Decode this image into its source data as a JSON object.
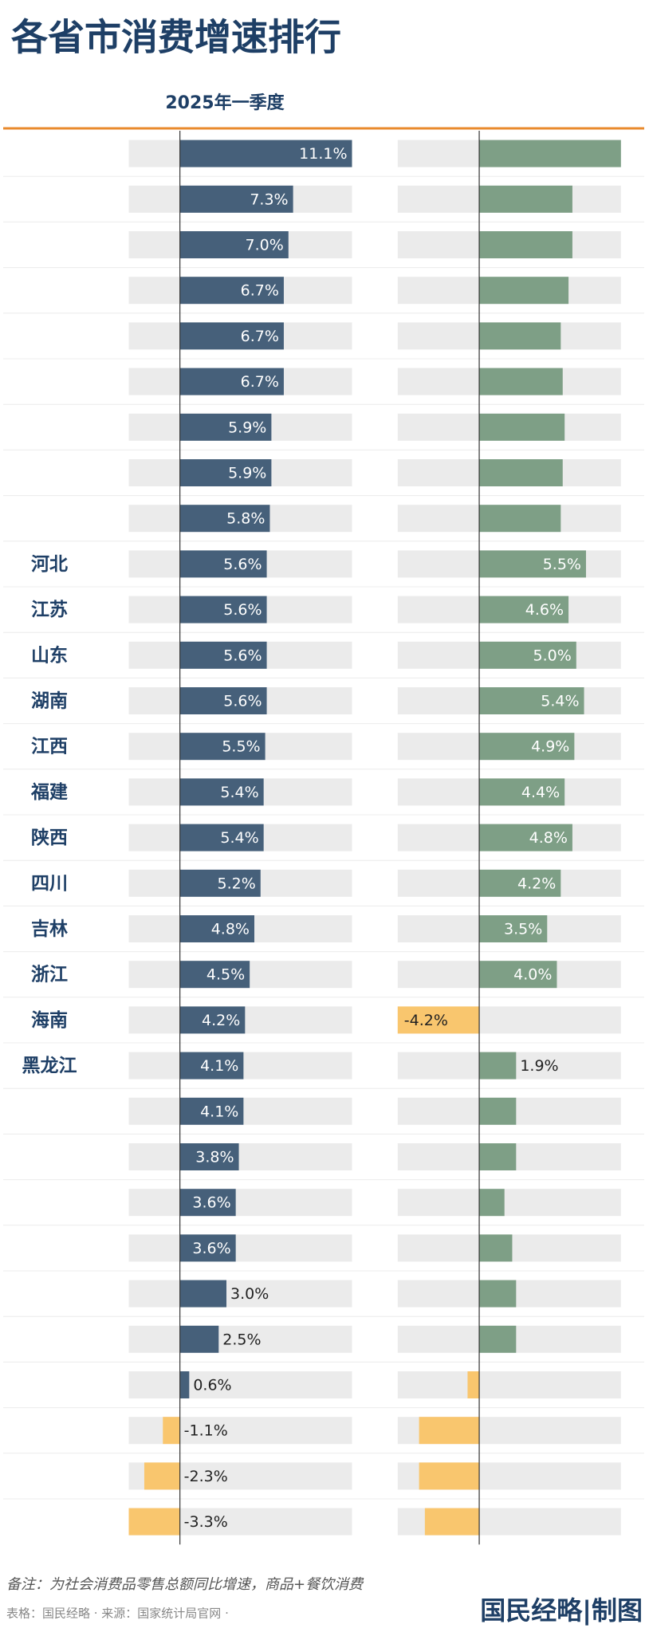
{
  "chart_data": {
    "type": "bar",
    "orientation": "horizontal",
    "title": "各省市消费增速排行",
    "note": "备注：为社会消费品零售总额同比增速，商品+餐饮消费",
    "source": "表格：国民经略 · 来源：国家统计局官网 ·",
    "brand": "国民经略|制图",
    "categories": [
      null,
      null,
      null,
      null,
      null,
      null,
      null,
      null,
      null,
      "河北",
      "江苏",
      "山东",
      "湖南",
      "江西",
      "福建",
      "陕西",
      "四川",
      "吉林",
      "浙江",
      "海南",
      "黑龙江",
      null,
      null,
      null,
      null,
      null,
      null,
      null,
      null,
      null,
      null
    ],
    "series": [
      {
        "name": "2025年一季度",
        "color": "#46607a",
        "negative_color": "#f9c66e",
        "xlim": [
          -3.3,
          11.1
        ],
        "values": [
          11.1,
          7.3,
          7.0,
          6.7,
          6.7,
          6.7,
          5.9,
          5.9,
          5.8,
          5.6,
          5.6,
          5.6,
          5.6,
          5.5,
          5.4,
          5.4,
          5.2,
          4.8,
          4.5,
          4.2,
          4.1,
          4.1,
          3.8,
          3.6,
          3.6,
          3.0,
          2.5,
          0.6,
          -1.1,
          -2.3,
          -3.3
        ],
        "value_labels": [
          "11.1%",
          "7.3%",
          "7.0%",
          "6.7%",
          "6.7%",
          "6.7%",
          "5.9%",
          "5.9%",
          "5.8%",
          "5.6%",
          "5.6%",
          "5.6%",
          "5.6%",
          "5.5%",
          "5.4%",
          "5.4%",
          "5.2%",
          "4.8%",
          "4.5%",
          "4.2%",
          "4.1%",
          "4.1%",
          "3.8%",
          "3.6%",
          "3.6%",
          "3.0%",
          "2.5%",
          "0.6%",
          "-1.1%",
          "-2.3%",
          "-3.3%"
        ]
      },
      {
        "color": "#7e9f86",
        "negative_color": "#f9c66e",
        "xlim": [
          -4.2,
          7.3
        ],
        "values": [
          7.3,
          4.8,
          4.8,
          4.6,
          4.2,
          4.3,
          4.4,
          4.3,
          4.2,
          5.5,
          4.6,
          5.0,
          5.4,
          4.9,
          4.4,
          4.8,
          4.2,
          3.5,
          4.0,
          -4.2,
          1.9,
          1.9,
          1.9,
          1.3,
          1.7,
          1.9,
          1.9,
          -0.6,
          -3.1,
          -3.1,
          -2.8
        ],
        "value_labels": [
          null,
          null,
          null,
          null,
          null,
          null,
          null,
          null,
          null,
          "5.5%",
          "4.6%",
          "5.0%",
          "5.4%",
          "4.9%",
          "4.4%",
          "4.8%",
          "4.2%",
          "3.5%",
          "4.0%",
          "-4.2%",
          "1.9%",
          null,
          null,
          null,
          null,
          null,
          null,
          null,
          null,
          null,
          null
        ]
      }
    ]
  }
}
